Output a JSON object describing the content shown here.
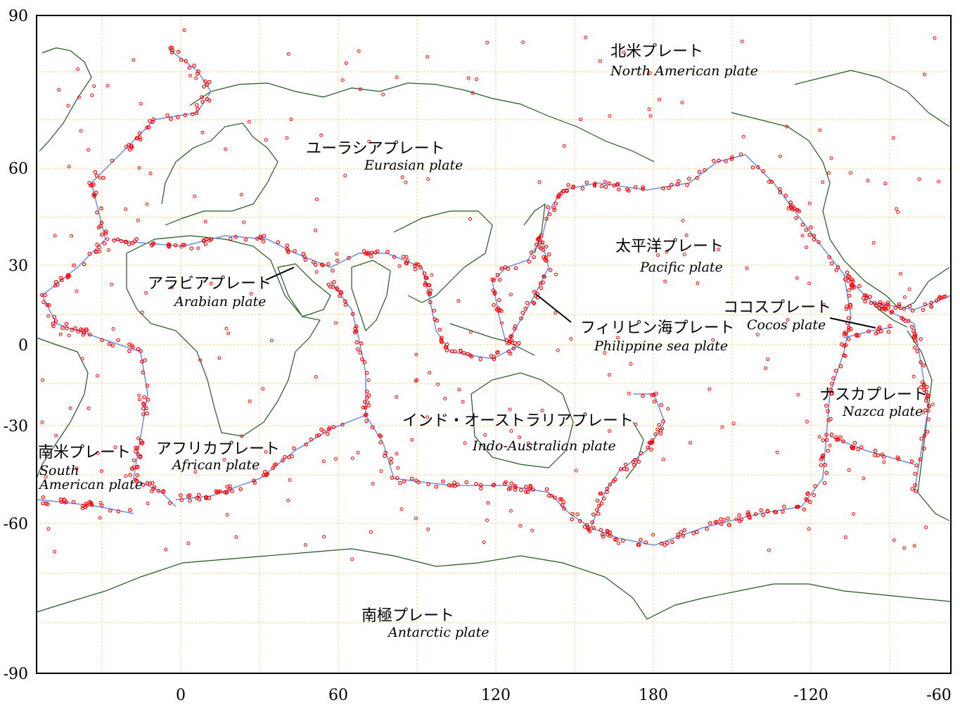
{
  "map": {
    "projection": "equirectangular",
    "center_longitude": 150,
    "lon_range": [
      -30,
      330
    ],
    "lat_range": [
      -90,
      90
    ],
    "grid": true,
    "colors": {
      "frame": "#000000",
      "grid": "#f2d28a",
      "coastline": "#1e5a1e",
      "plate_boundary": "#6b8fe0",
      "earthquake": "#ff0000"
    }
  },
  "axes": {
    "y_ticks": [
      "90",
      "60",
      "30",
      "0",
      "-30",
      "-60",
      "-90"
    ],
    "x_ticks": [
      "0",
      "60",
      "120",
      "180",
      "-120",
      "-60"
    ]
  },
  "plates": [
    {
      "id": "north-american",
      "jp": "北米プレート",
      "en": "North American plate"
    },
    {
      "id": "eurasian",
      "jp": "ユーラシアプレート",
      "en": "Eurasian plate"
    },
    {
      "id": "pacific",
      "jp": "太平洋プレート",
      "en": "Pacific plate"
    },
    {
      "id": "arabian",
      "jp": "アラビアプレート",
      "en": "Arabian plate"
    },
    {
      "id": "philippine",
      "jp": "フィリピン海プレート",
      "en": "Philippine sea plate"
    },
    {
      "id": "cocos",
      "jp": "ココスプレート",
      "en": "Cocos plate"
    },
    {
      "id": "nazca",
      "jp": "ナスカプレート",
      "en": "Nazca plate"
    },
    {
      "id": "indo-australian",
      "jp": "インド・オーストラリアプレート",
      "en": "Indo-Australian plate"
    },
    {
      "id": "south-american",
      "jp": "南米プレート",
      "en": "South",
      "en2": "American plate"
    },
    {
      "id": "african",
      "jp": "アフリカプレート",
      "en": "African plate"
    },
    {
      "id": "antarctic",
      "jp": "南極プレート",
      "en": "Antarctic plate"
    }
  ]
}
